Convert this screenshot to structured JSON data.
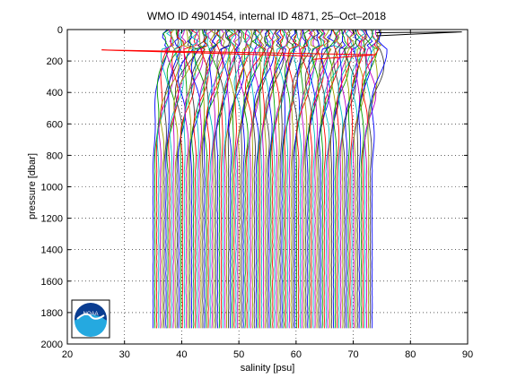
{
  "chart_data": {
    "type": "line",
    "title": "WMO ID 4901454, internal ID 4871, 25–Oct–2018",
    "xlabel": "salinity [psu]",
    "ylabel": "pressure [dbar]",
    "xlim": [
      20,
      90
    ],
    "ylim": [
      0,
      2000
    ],
    "y_reversed": true,
    "grid": "dotted",
    "x_ticks": [
      20,
      30,
      40,
      50,
      60,
      70,
      80,
      90
    ],
    "y_ticks": [
      0,
      200,
      400,
      600,
      800,
      1000,
      1200,
      1400,
      1600,
      1800,
      2000
    ],
    "profiles": {
      "count": 120,
      "first_surface_salinity": 37.0,
      "last_surface_salinity": 75.0,
      "first_bottom_salinity": 35.0,
      "last_bottom_salinity": 73.3,
      "max_pressure": 1900,
      "line_colors": [
        "#0000ff",
        "#00a000",
        "#ff0000",
        "#00c0c0",
        "#c000c0",
        "#a0a000",
        "#404040"
      ]
    },
    "outliers": [
      {
        "name": "spike",
        "points": [
          [
            63,
            170
          ],
          [
            26,
            130
          ],
          [
            74,
            160
          ],
          [
            63,
            190
          ]
        ],
        "color": "#ff0000"
      },
      {
        "name": "surface-spike",
        "points": [
          [
            74,
            20
          ],
          [
            89,
            15
          ],
          [
            74,
            40
          ]
        ],
        "color": "#000000"
      }
    ],
    "logo": {
      "text": "NOAA"
    }
  }
}
